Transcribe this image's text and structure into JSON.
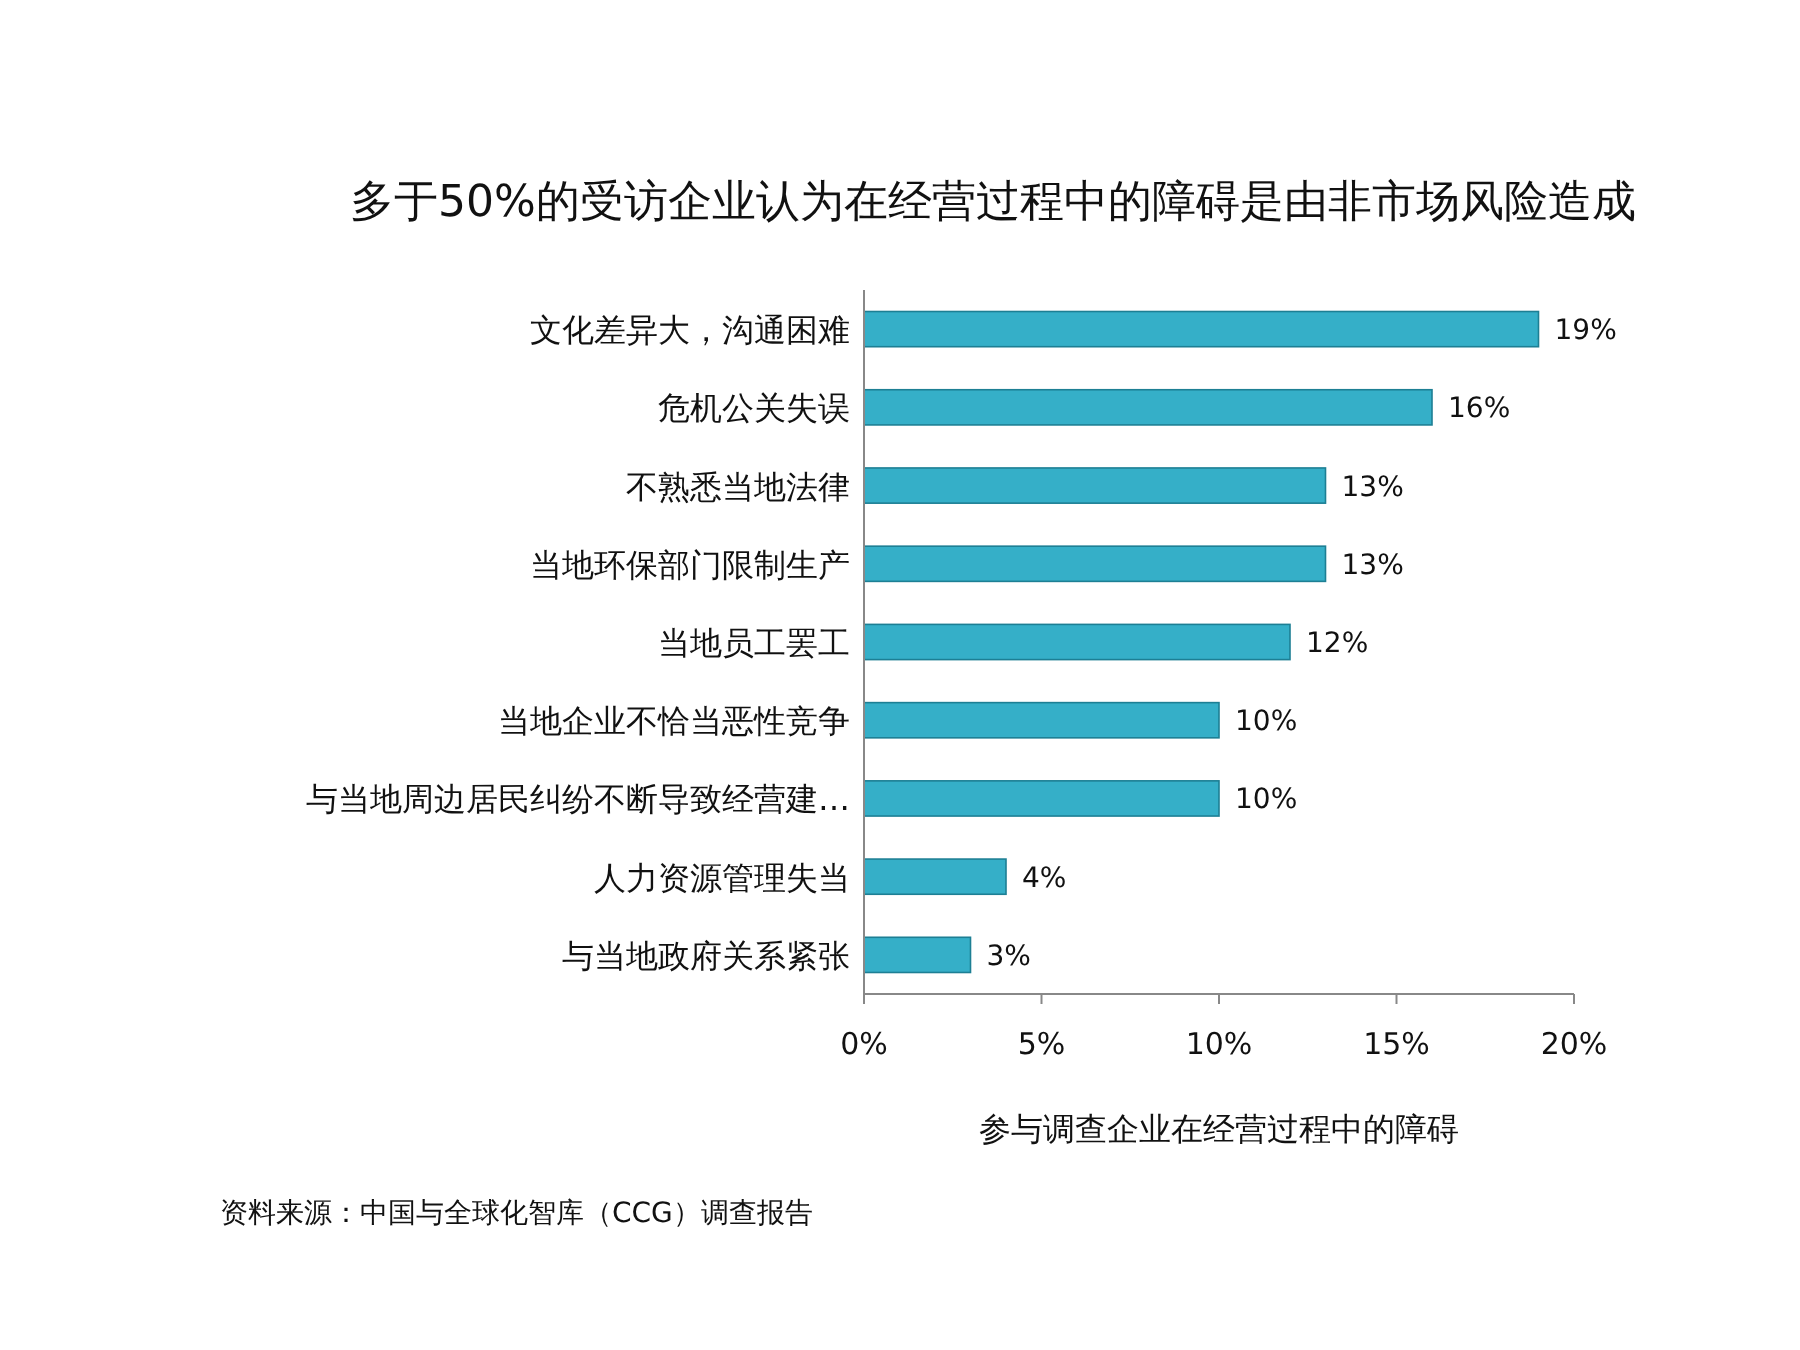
{
  "chart_data": {
    "type": "bar",
    "orientation": "horizontal",
    "title": "多于50%的受访企业认为在经营过程中的障碍是由非市场风险造成",
    "xlabel": "参与调查企业在经营过程中的障碍",
    "categories": [
      "文化差异大，沟通困难",
      "危机公关失误",
      "不熟悉当地法律",
      "当地环保部门限制生产",
      "当地员工罢工",
      "当地企业不恰当恶性竞争",
      "与当地周边居民纠纷不断导致经营建…",
      "人力资源管理失当",
      "与当地政府关系紧张"
    ],
    "values": [
      19,
      16,
      13,
      13,
      12,
      10,
      10,
      4,
      3
    ],
    "value_labels": [
      "19%",
      "16%",
      "13%",
      "13%",
      "12%",
      "10%",
      "10%",
      "4%",
      "3%"
    ],
    "color": "#35afc8",
    "xlim": [
      0,
      20
    ],
    "xticks": [
      {
        "value": 0,
        "label": "0%"
      },
      {
        "value": 5,
        "label": "5%"
      },
      {
        "value": 10,
        "label": "10%"
      },
      {
        "value": 15,
        "label": "15%"
      },
      {
        "value": 20,
        "label": "20%"
      }
    ],
    "grid": false,
    "annotations": [
      "资料来源：中国与全球化智库（CCG）调查报告"
    ]
  }
}
